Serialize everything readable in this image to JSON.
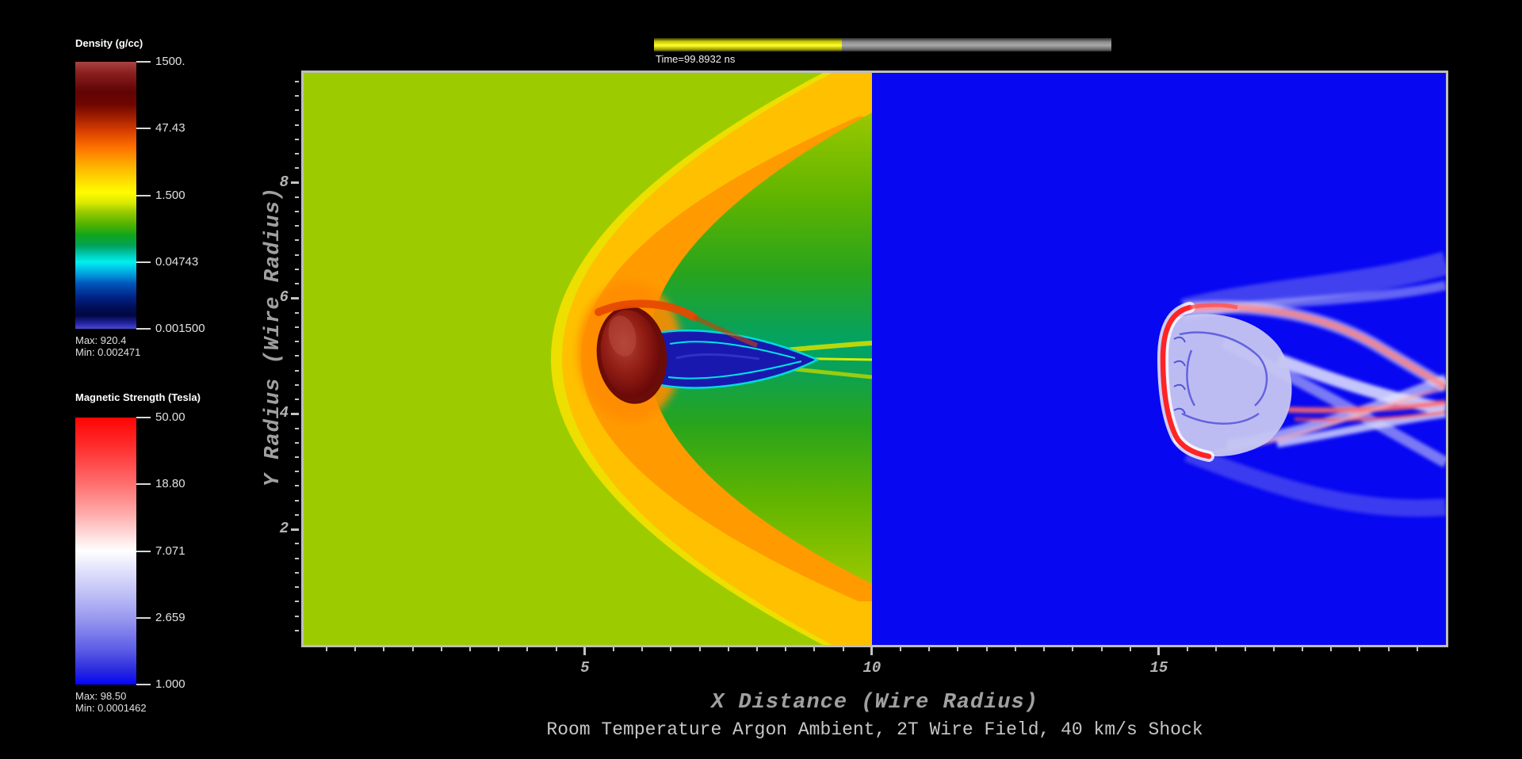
{
  "colorbars": [
    {
      "id": "density",
      "title": "Density (g/cc)",
      "tick_labels": [
        "1500.",
        "47.43",
        "1.500",
        "0.04743",
        "0.001500"
      ],
      "scale": "log",
      "color_min": 0.0015,
      "color_max": 1500,
      "max_label": "Max:  920.4",
      "min_label": "Min:  0.002471"
    },
    {
      "id": "magnetic",
      "title": "Magnetic Strength (Tesla)",
      "tick_labels": [
        "50.00",
        "18.80",
        "7.071",
        "2.659",
        "1.000"
      ],
      "scale": "log",
      "color_min": 1.0,
      "color_max": 50.0,
      "max_label": "Max:  98.50",
      "min_label": "Min:  0.0001462"
    }
  ],
  "timebar": {
    "label": "Time=99.8932 ns",
    "fraction": 0.41
  },
  "chart_data": {
    "type": "heatmap",
    "title": "Room Temperature Argon Ambient, 2T Wire Field, 40 km/s Shock",
    "xlabel": "X Distance (Wire Radius)",
    "ylabel": "Y Radius (Wire Radius)",
    "xlim": [
      0.1,
      20
    ],
    "ylim": [
      0,
      9.9
    ],
    "x_major_ticks": [
      5,
      10,
      15
    ],
    "x_major_tick_labels": [
      "5",
      "10",
      "15"
    ],
    "x_minor_step": 0.5,
    "y_major_ticks": [
      2,
      4,
      6,
      8
    ],
    "y_major_tick_labels": [
      "2",
      "4",
      "6",
      "8"
    ],
    "y_minor_step": 0.25,
    "grid": false,
    "legend_position": "left",
    "time_ns": 99.8932,
    "panels": [
      {
        "name": "density-pseudocolor",
        "variable": "Density (g/cc)",
        "x_range": [
          0.1,
          10
        ],
        "scale": "log",
        "color_min": 0.0015,
        "color_max": 1500,
        "data_min": 0.002471,
        "data_max": 920.4,
        "ambient_color": "#9CCC00",
        "features": [
          "parabolic bow shock, yellow/orange front with vertex near x=4.3 y=5",
          "dark red wire plasma blob near x=5.8 y=5 with orange-red arc above",
          "cyan-edged dark blue vortex pocket in wake behind wire",
          "green wake expanding rightward to x=10 with yellow centerline streaks"
        ]
      },
      {
        "name": "magnetic-pseudocolor",
        "variable": "Magnetic Strength (Tesla)",
        "x_range": [
          10,
          20
        ],
        "scale": "log",
        "color_min": 1.0,
        "color_max": 50.0,
        "data_min": 0.0001462,
        "data_max": 98.5,
        "ambient_color": "#0707F2",
        "features": [
          "bright red field-compression arc near x=15.2 y=4-5.6 with white fringe",
          "pale lavender turbulent blob with fine blue filaments behind arc",
          "braided white/pink/red wake stripes extending and crossing out to x=20"
        ]
      }
    ]
  }
}
